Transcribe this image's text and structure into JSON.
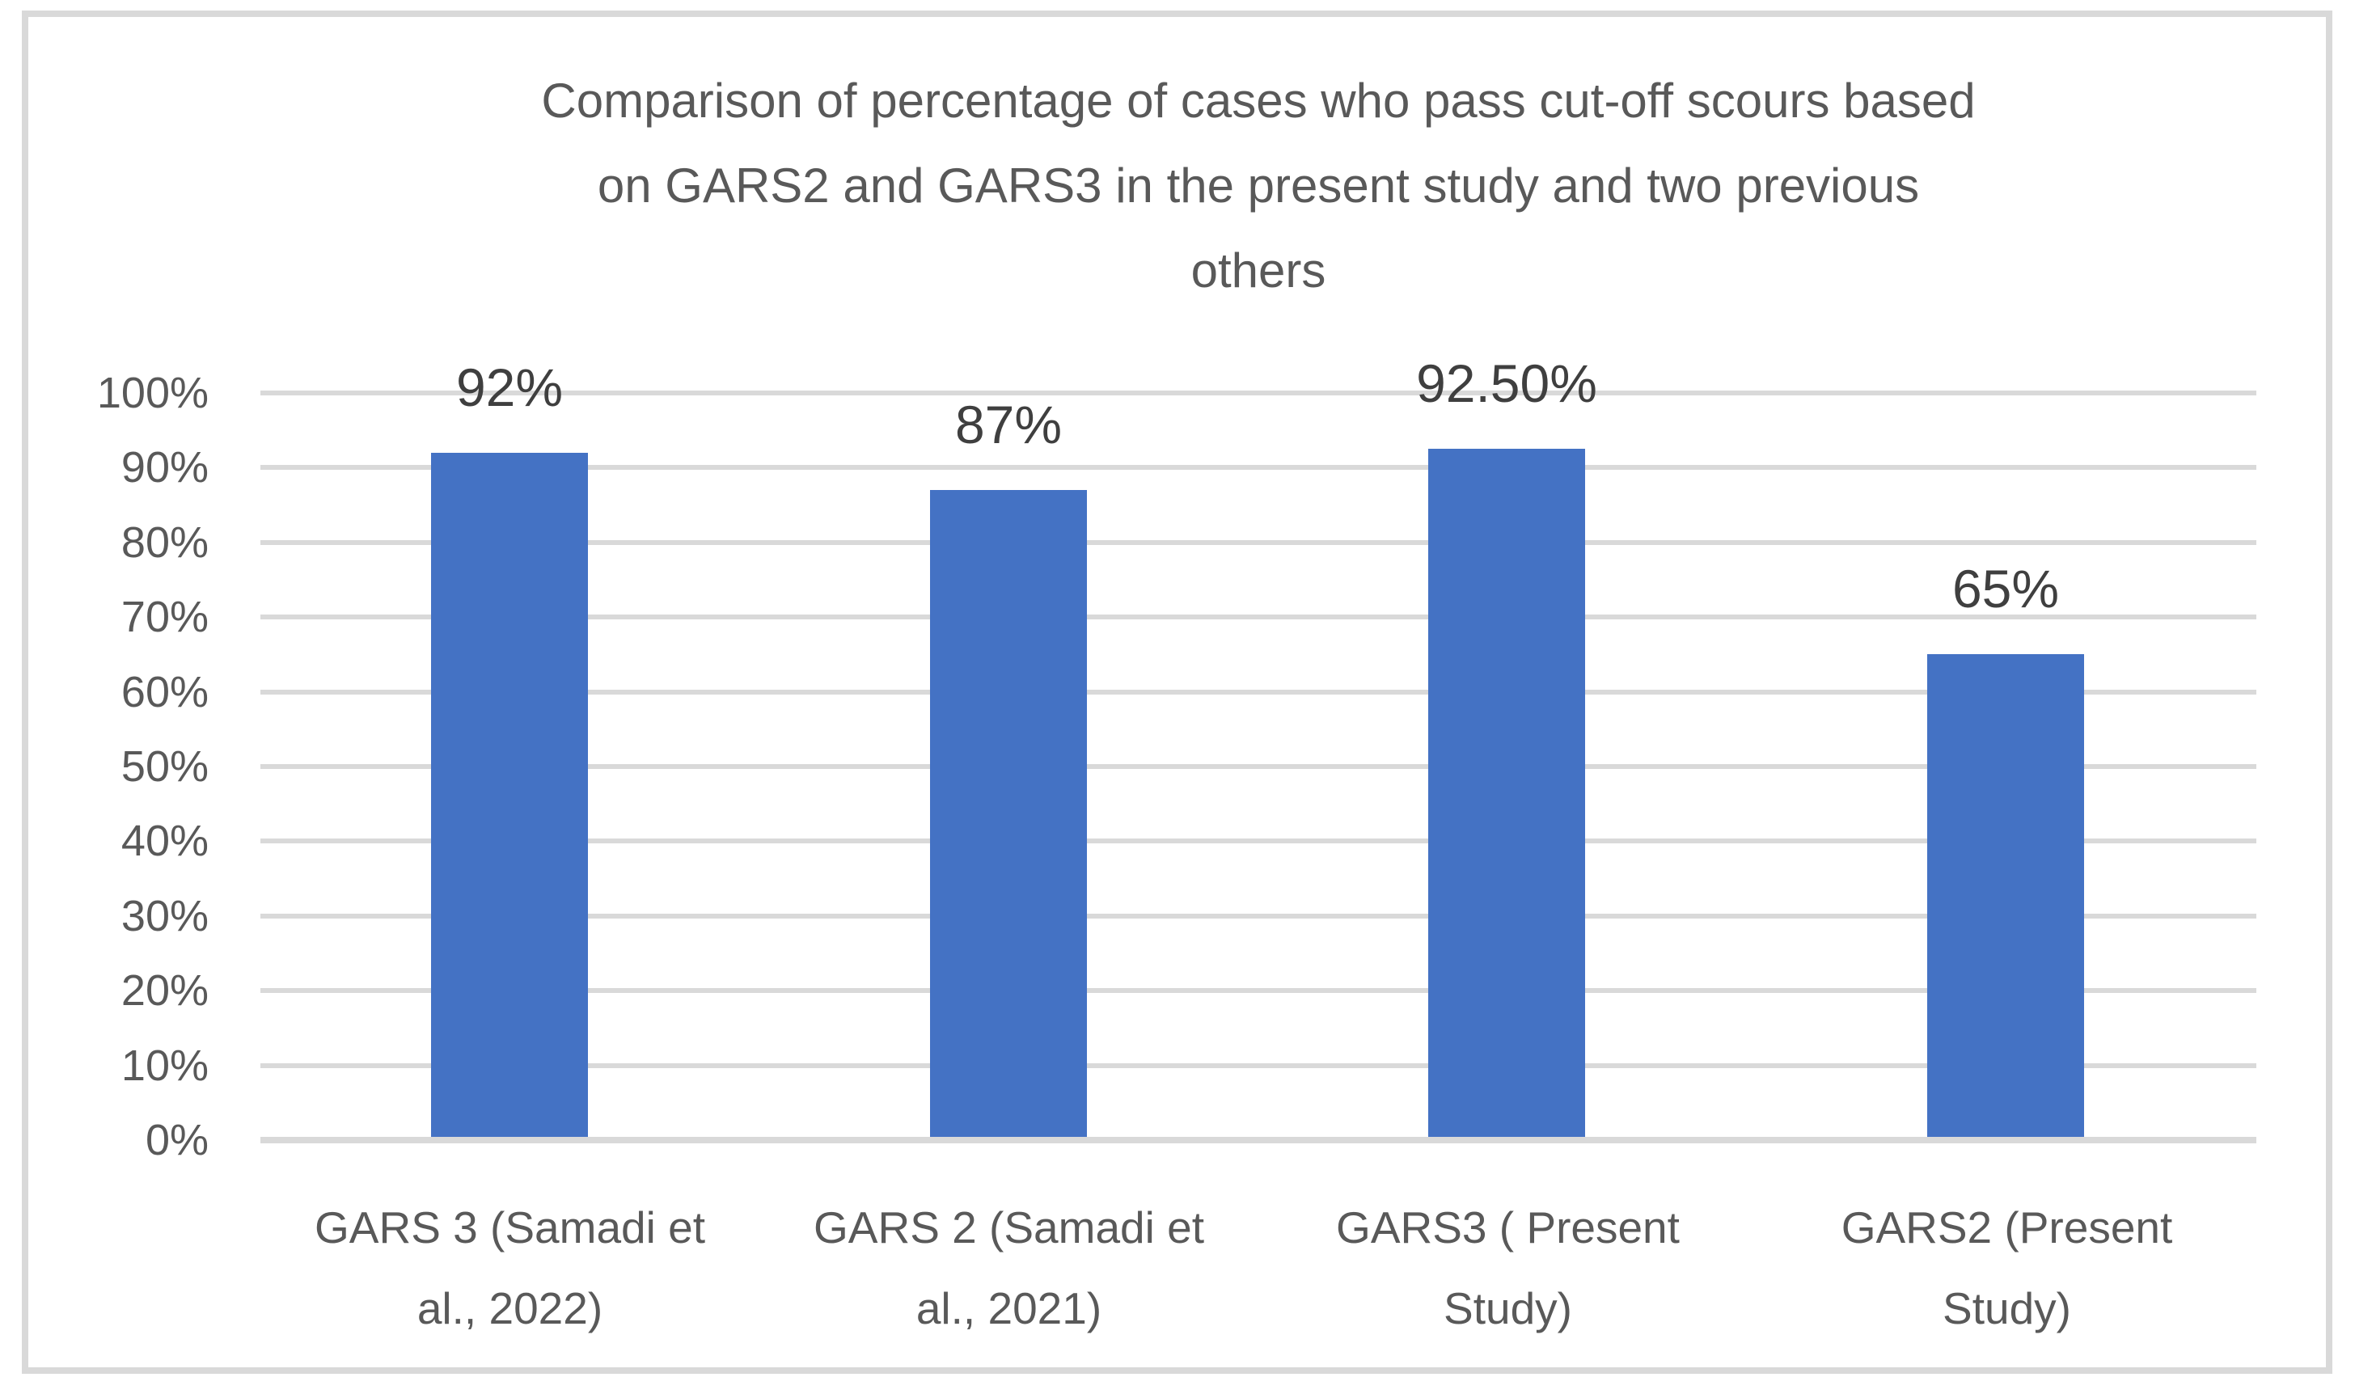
{
  "chart_data": {
    "type": "bar",
    "title": "Comparison of percentage of cases who pass cut-off scours based on GARS2 and GARS3 in the present study and two previous others",
    "title_lines": [
      "Comparison of percentage of cases who pass cut-off scours based",
      "on GARS2 and GARS3 in the present study and two previous",
      "others"
    ],
    "categories": [
      "GARS 3 (Samadi et al., 2022)",
      "GARS 2 (Samadi et al., 2021)",
      "GARS3 ( Present Study)",
      "GARS2 (Present Study)"
    ],
    "category_wrap": [
      [
        "GARS 3 (Samadi et",
        "al., 2022)"
      ],
      [
        "GARS 2 (Samadi et",
        "al., 2021)"
      ],
      [
        "GARS3 ( Present",
        "Study)"
      ],
      [
        "GARS2 (Present",
        "Study)"
      ]
    ],
    "values": [
      92,
      87,
      92.5,
      65
    ],
    "data_labels": [
      "92%",
      "87%",
      "92.50%",
      "65%"
    ],
    "y_ticks": [
      "100%",
      "90%",
      "80%",
      "70%",
      "60%",
      "50%",
      "40%",
      "30%",
      "20%",
      "10%",
      "0%"
    ],
    "ylim": [
      0,
      100
    ],
    "y_step": 10,
    "grid": true,
    "legend": "none",
    "xlabel": "",
    "ylabel": "",
    "colors": {
      "bar": "#4472C4",
      "gridline": "#D9D9D9",
      "axis_line": "#D9D9D9",
      "title_text": "#595959",
      "tick_text": "#595959",
      "data_label_text": "#3F3F3F",
      "border": "#D9D9D9",
      "background": "#FFFFFF"
    }
  }
}
